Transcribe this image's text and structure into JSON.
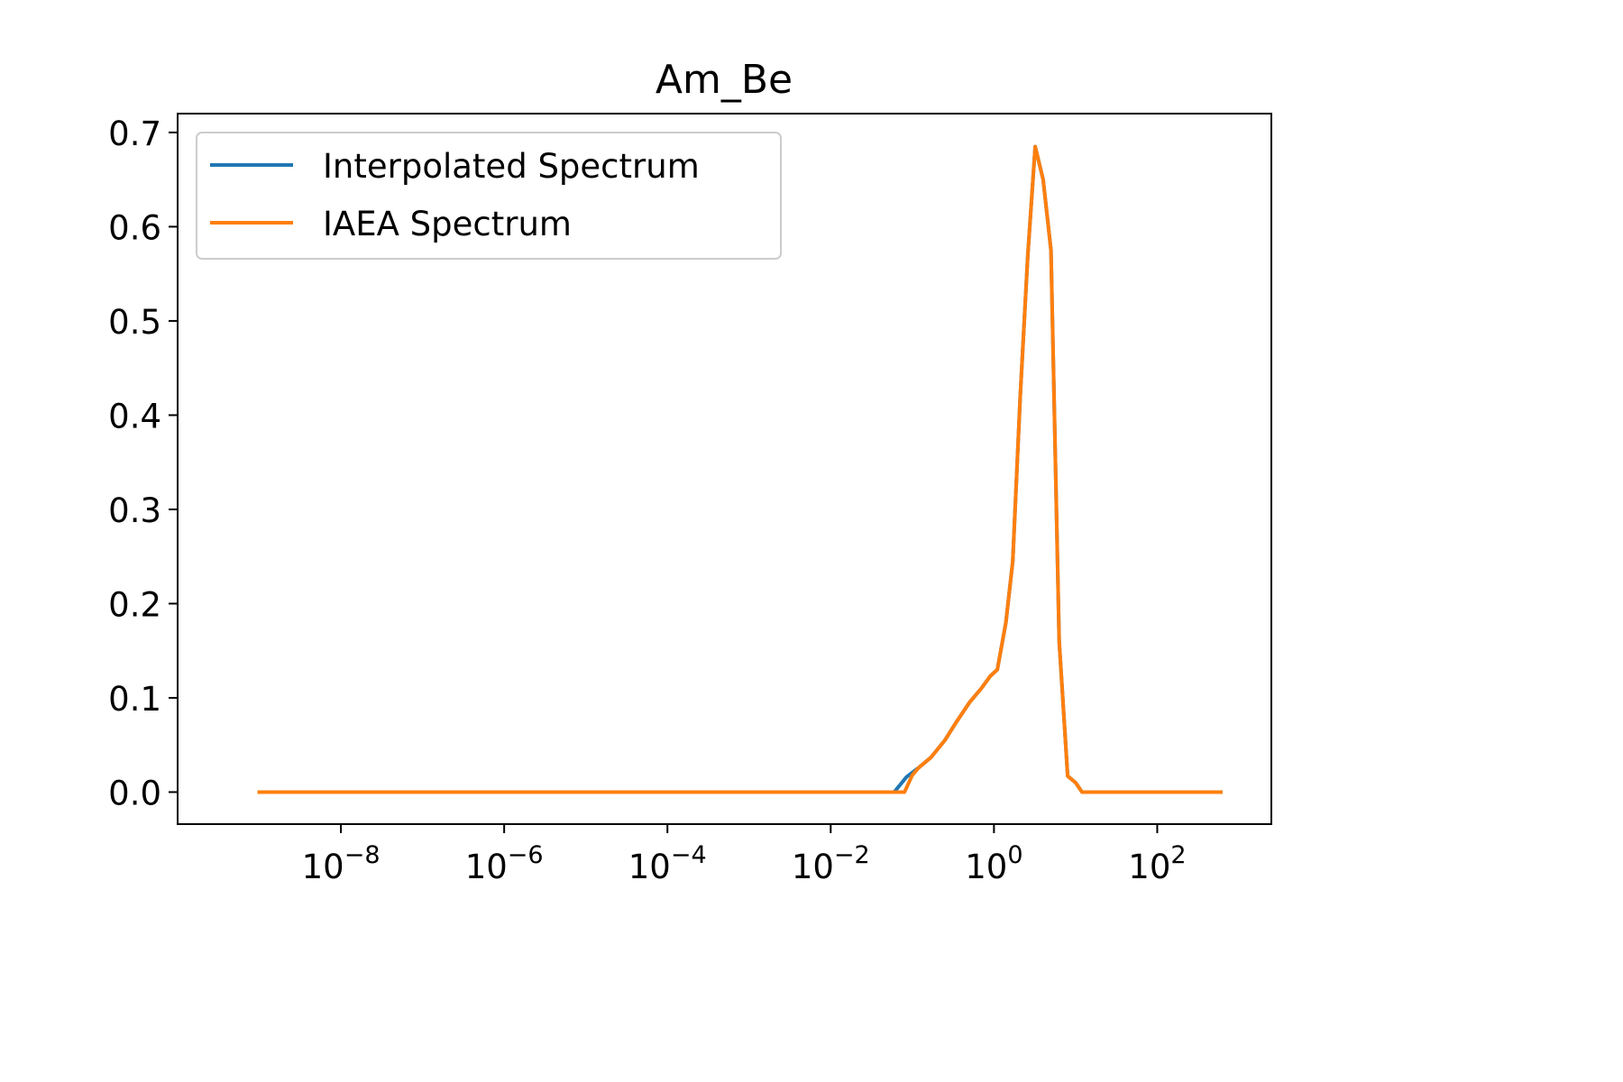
{
  "chart_data": {
    "type": "line",
    "title": "Am_Be",
    "xlabel": "",
    "ylabel": "",
    "xscale": "log",
    "xlim": [
      1e-10,
      2500
    ],
    "ylim": [
      -0.034,
      0.72
    ],
    "grid": false,
    "legend": "top-left",
    "x_ticks": [
      {
        "value": 1e-08,
        "base": "10",
        "exp": "−8"
      },
      {
        "value": 1e-06,
        "base": "10",
        "exp": "−6"
      },
      {
        "value": 0.0001,
        "base": "10",
        "exp": "−4"
      },
      {
        "value": 0.01,
        "base": "10",
        "exp": "−2"
      },
      {
        "value": 1,
        "base": "10",
        "exp": "0"
      },
      {
        "value": 100,
        "base": "10",
        "exp": "2"
      }
    ],
    "y_ticks": [
      {
        "value": 0.0,
        "label": "0.0"
      },
      {
        "value": 0.1,
        "label": "0.1"
      },
      {
        "value": 0.2,
        "label": "0.2"
      },
      {
        "value": 0.3,
        "label": "0.3"
      },
      {
        "value": 0.4,
        "label": "0.4"
      },
      {
        "value": 0.5,
        "label": "0.5"
      },
      {
        "value": 0.6,
        "label": "0.6"
      },
      {
        "value": 0.7,
        "label": "0.7"
      }
    ],
    "series": [
      {
        "name": "Interpolated Spectrum",
        "color": "#1f77b4",
        "x": [
          1e-09,
          1e-07,
          1e-05,
          0.001,
          0.06,
          0.085,
          0.12,
          0.17,
          0.25,
          0.35,
          0.5,
          0.7,
          0.9,
          1.1,
          1.4,
          1.7,
          2.1,
          2.6,
          3.2,
          4.0,
          5.0,
          6.3,
          8.0,
          10.0,
          12.0,
          16.0,
          20.0,
          50.0,
          100.0,
          300.0,
          600.0
        ],
        "y": [
          0.0,
          0.0,
          0.0,
          0.0,
          0.0,
          0.016,
          0.026,
          0.037,
          0.055,
          0.075,
          0.095,
          0.11,
          0.123,
          0.13,
          0.18,
          0.245,
          0.42,
          0.57,
          0.685,
          0.65,
          0.575,
          0.16,
          0.017,
          0.01,
          0.0,
          0.0,
          0.0,
          0.0,
          0.0,
          0.0,
          0.0
        ]
      },
      {
        "name": "IAEA Spectrum",
        "color": "#ff7f0e",
        "x": [
          1e-09,
          1e-07,
          1e-05,
          0.001,
          0.06,
          0.08,
          0.1,
          0.12,
          0.17,
          0.25,
          0.35,
          0.5,
          0.7,
          0.9,
          1.1,
          1.4,
          1.7,
          2.1,
          2.6,
          3.2,
          4.0,
          5.0,
          6.3,
          8.0,
          10.0,
          12.0,
          16.0,
          20.0,
          50.0,
          100.0,
          300.0,
          600.0
        ],
        "y": [
          0.0,
          0.0,
          0.0,
          0.0,
          0.0,
          0.0,
          0.018,
          0.026,
          0.037,
          0.055,
          0.075,
          0.095,
          0.11,
          0.123,
          0.13,
          0.18,
          0.245,
          0.42,
          0.57,
          0.685,
          0.65,
          0.575,
          0.16,
          0.017,
          0.01,
          0.0,
          0.0,
          0.0,
          0.0,
          0.0,
          0.0,
          0.0
        ]
      }
    ]
  }
}
